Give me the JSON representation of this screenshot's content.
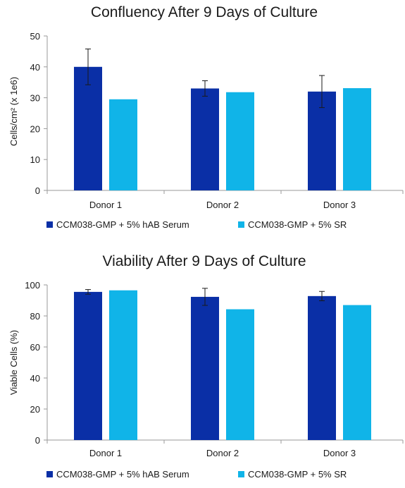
{
  "chart_data": [
    {
      "type": "bar",
      "title": "Confluency After 9 Days of Culture",
      "xlabel": "",
      "ylabel": "Cells/cm² (x 1e6)",
      "ylim": [
        0,
        50
      ],
      "yticks": [
        0,
        10,
        20,
        30,
        40,
        50
      ],
      "categories": [
        "Donor 1",
        "Donor 2",
        "Donor 3"
      ],
      "grid": false,
      "legend_position": "bottom",
      "series": [
        {
          "name": "CCM038-GMP + 5% hAB Serum",
          "color": "#0a2fa6",
          "values": [
            40,
            33,
            32
          ],
          "error": [
            5.8,
            2.5,
            5.2
          ]
        },
        {
          "name": "CCM038-GMP + 5% SR",
          "color": "#10b4e8",
          "values": [
            29.5,
            31.8,
            33.1
          ],
          "error": [
            null,
            null,
            null
          ]
        }
      ]
    },
    {
      "type": "bar",
      "title": "Viability After 9 Days of Culture",
      "xlabel": "",
      "ylabel": "Viable Cells (%)",
      "ylim": [
        0,
        100
      ],
      "yticks": [
        0,
        20,
        40,
        60,
        80,
        100
      ],
      "categories": [
        "Donor 1",
        "Donor 2",
        "Donor 3"
      ],
      "grid": false,
      "legend_position": "bottom",
      "series": [
        {
          "name": "CCM038-GMP + 5% hAB Serum",
          "color": "#0a2fa6",
          "values": [
            95.5,
            92.3,
            92.8
          ],
          "error": [
            1.5,
            5.5,
            3.0
          ]
        },
        {
          "name": "CCM038-GMP + 5% SR",
          "color": "#10b4e8",
          "values": [
            96.5,
            84.3,
            87.0
          ],
          "error": [
            null,
            null,
            null
          ]
        }
      ]
    }
  ]
}
